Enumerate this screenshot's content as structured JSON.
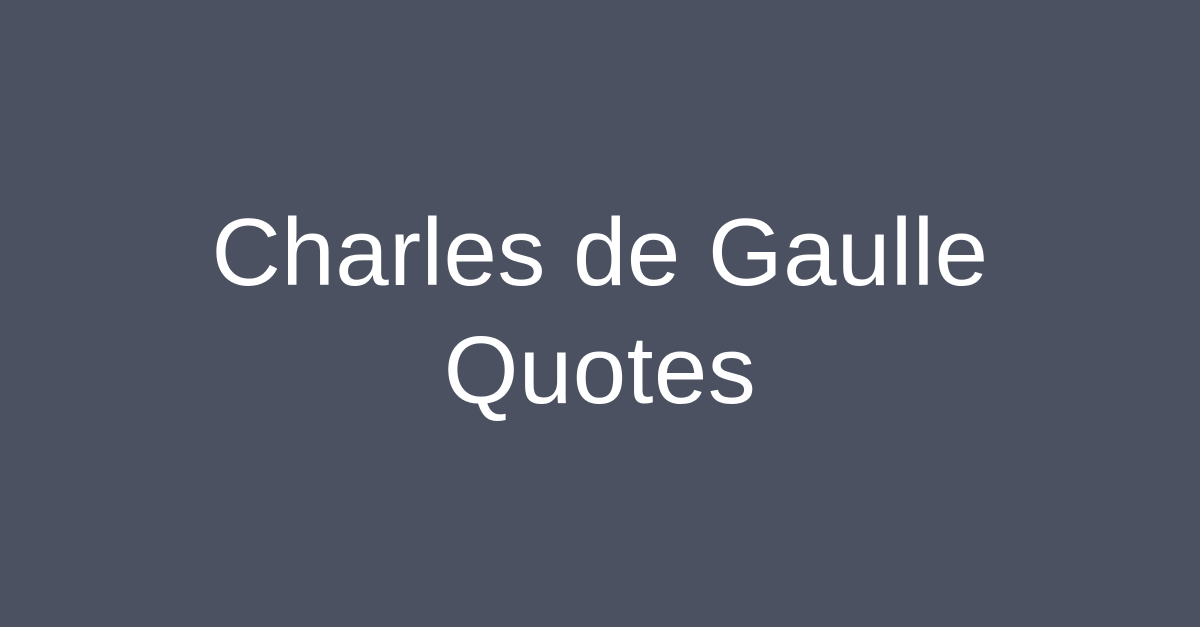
{
  "colors": {
    "background": "#4b5160",
    "text": "#ffffff"
  },
  "title": {
    "line1": "Charles de Gaulle",
    "line2": "Quotes"
  }
}
